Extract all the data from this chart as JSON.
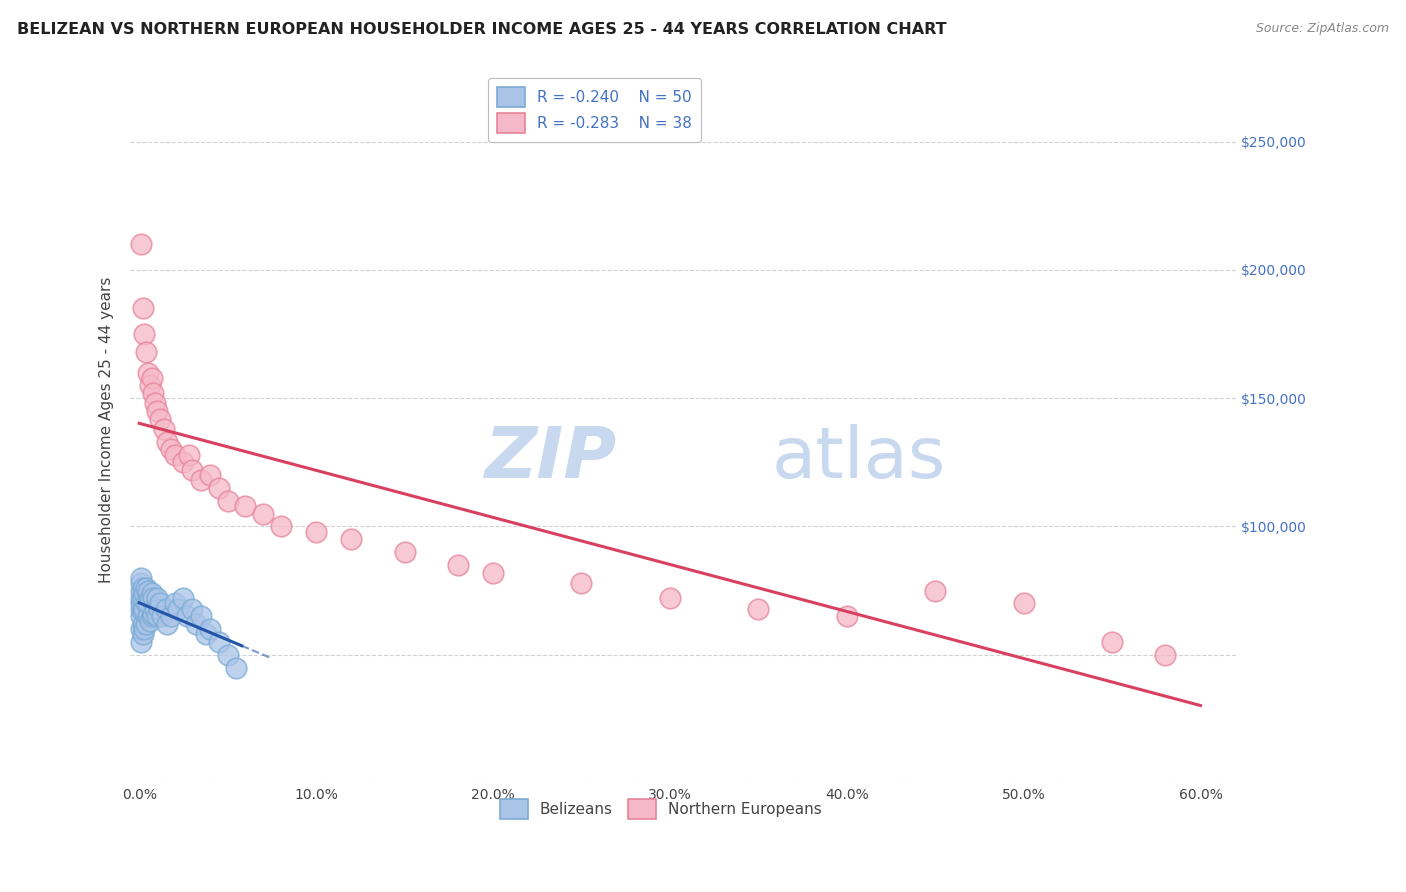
{
  "title": "BELIZEAN VS NORTHERN EUROPEAN HOUSEHOLDER INCOME AGES 25 - 44 YEARS CORRELATION CHART",
  "source": "Source: ZipAtlas.com",
  "ylabel": "Householder Income Ages 25 - 44 years",
  "xlim": [
    -0.005,
    0.62
  ],
  "ylim": [
    0,
    275000
  ],
  "right_ytick_labels": [
    "$100,000",
    "$150,000",
    "$200,000",
    "$250,000"
  ],
  "right_ytick_vals": [
    100000,
    150000,
    200000,
    250000
  ],
  "belizean_R": -0.24,
  "belizean_N": 50,
  "northern_european_R": -0.283,
  "northern_european_N": 38,
  "belizean_circle_color": "#aac4e8",
  "belizean_edge_color": "#7aaad4",
  "northern_european_circle_color": "#f5b8c8",
  "northern_european_edge_color": "#e8839a",
  "belizean_line_color": "#2255aa",
  "northern_european_line_color": "#d94060",
  "watermark_zip_color": "#c8d8ee",
  "watermark_atlas_color": "#c8d8ee",
  "grid_color": "#cccccc",
  "background_color": "#ffffff",
  "belizean_x": [
    0.001,
    0.001,
    0.001,
    0.001,
    0.001,
    0.001,
    0.001,
    0.001,
    0.001,
    0.002,
    0.002,
    0.002,
    0.002,
    0.002,
    0.003,
    0.003,
    0.003,
    0.004,
    0.004,
    0.004,
    0.005,
    0.005,
    0.005,
    0.006,
    0.006,
    0.007,
    0.007,
    0.008,
    0.008,
    0.009,
    0.01,
    0.01,
    0.011,
    0.012,
    0.013,
    0.015,
    0.016,
    0.018,
    0.02,
    0.022,
    0.025,
    0.027,
    0.03,
    0.032,
    0.035,
    0.038,
    0.04,
    0.045,
    0.05,
    0.055
  ],
  "belizean_y": [
    55000,
    60000,
    65000,
    68000,
    70000,
    72000,
    75000,
    78000,
    80000,
    58000,
    62000,
    67000,
    72000,
    76000,
    60000,
    68000,
    74000,
    62000,
    70000,
    76000,
    65000,
    70000,
    75000,
    63000,
    72000,
    65000,
    74000,
    66000,
    72000,
    68000,
    65000,
    72000,
    68000,
    70000,
    65000,
    68000,
    62000,
    65000,
    70000,
    68000,
    72000,
    65000,
    68000,
    62000,
    65000,
    58000,
    60000,
    55000,
    50000,
    45000
  ],
  "northern_european_x": [
    0.001,
    0.002,
    0.003,
    0.004,
    0.005,
    0.006,
    0.007,
    0.008,
    0.009,
    0.01,
    0.012,
    0.014,
    0.016,
    0.018,
    0.02,
    0.025,
    0.028,
    0.03,
    0.035,
    0.04,
    0.045,
    0.05,
    0.06,
    0.07,
    0.08,
    0.1,
    0.12,
    0.15,
    0.18,
    0.2,
    0.25,
    0.3,
    0.35,
    0.4,
    0.45,
    0.5,
    0.55,
    0.58
  ],
  "northern_european_y": [
    210000,
    185000,
    175000,
    168000,
    160000,
    155000,
    158000,
    152000,
    148000,
    145000,
    142000,
    138000,
    133000,
    130000,
    128000,
    125000,
    128000,
    122000,
    118000,
    120000,
    115000,
    110000,
    108000,
    105000,
    100000,
    98000,
    95000,
    90000,
    85000,
    82000,
    78000,
    72000,
    68000,
    65000,
    75000,
    70000,
    55000,
    50000
  ]
}
